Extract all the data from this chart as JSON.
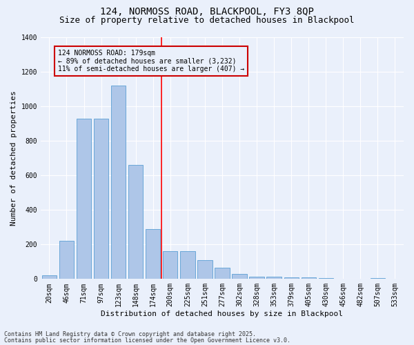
{
  "title1": "124, NORMOSS ROAD, BLACKPOOL, FY3 8QP",
  "title2": "Size of property relative to detached houses in Blackpool",
  "xlabel": "Distribution of detached houses by size in Blackpool",
  "ylabel": "Number of detached properties",
  "categories": [
    "20sqm",
    "46sqm",
    "71sqm",
    "97sqm",
    "123sqm",
    "148sqm",
    "174sqm",
    "200sqm",
    "225sqm",
    "251sqm",
    "277sqm",
    "302sqm",
    "328sqm",
    "353sqm",
    "379sqm",
    "405sqm",
    "430sqm",
    "456sqm",
    "482sqm",
    "507sqm",
    "533sqm"
  ],
  "values": [
    20,
    220,
    930,
    930,
    1120,
    660,
    290,
    160,
    160,
    110,
    65,
    30,
    15,
    15,
    10,
    10,
    5,
    2,
    2,
    5,
    1
  ],
  "bar_color": "#aec6e8",
  "bar_edge_color": "#5a9fd4",
  "bg_color": "#eaf0fb",
  "grid_color": "#ffffff",
  "annotation_box_text": "124 NORMOSS ROAD: 179sqm\n← 89% of detached houses are smaller (3,232)\n11% of semi-detached houses are larger (407) →",
  "annotation_box_color": "#cc0000",
  "red_line_x": 6.5,
  "ylim": [
    0,
    1400
  ],
  "yticks": [
    0,
    200,
    400,
    600,
    800,
    1000,
    1200,
    1400
  ],
  "footer1": "Contains HM Land Registry data © Crown copyright and database right 2025.",
  "footer2": "Contains public sector information licensed under the Open Government Licence v3.0.",
  "title_fontsize": 10,
  "subtitle_fontsize": 9,
  "axis_label_fontsize": 8,
  "tick_fontsize": 7,
  "annotation_fontsize": 7,
  "footer_fontsize": 6
}
